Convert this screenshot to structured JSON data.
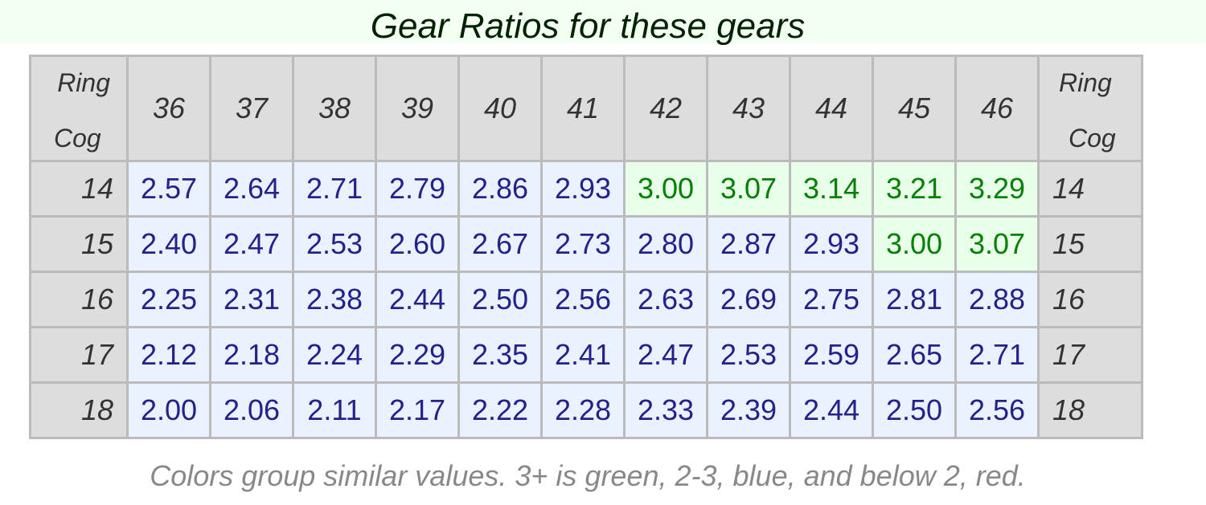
{
  "title": "Gear Ratios for these gears",
  "corner": {
    "ring": "Ring",
    "cog": "Cog"
  },
  "rings": [
    "36",
    "37",
    "38",
    "39",
    "40",
    "41",
    "42",
    "43",
    "44",
    "45",
    "46"
  ],
  "rows": [
    {
      "cog": "14",
      "values": [
        "2.57",
        "2.64",
        "2.71",
        "2.79",
        "2.86",
        "2.93",
        "3.00",
        "3.07",
        "3.14",
        "3.21",
        "3.29"
      ]
    },
    {
      "cog": "15",
      "values": [
        "2.40",
        "2.47",
        "2.53",
        "2.60",
        "2.67",
        "2.73",
        "2.80",
        "2.87",
        "2.93",
        "3.00",
        "3.07"
      ]
    },
    {
      "cog": "16",
      "values": [
        "2.25",
        "2.31",
        "2.38",
        "2.44",
        "2.50",
        "2.56",
        "2.63",
        "2.69",
        "2.75",
        "2.81",
        "2.88"
      ]
    },
    {
      "cog": "17",
      "values": [
        "2.12",
        "2.18",
        "2.24",
        "2.29",
        "2.35",
        "2.41",
        "2.47",
        "2.53",
        "2.59",
        "2.65",
        "2.71"
      ]
    },
    {
      "cog": "18",
      "values": [
        "2.00",
        "2.06",
        "2.11",
        "2.17",
        "2.22",
        "2.28",
        "2.33",
        "2.39",
        "2.44",
        "2.50",
        "2.56"
      ]
    }
  ],
  "colors": {
    "green_bg": "#eaffea",
    "green_text": "#008000",
    "blue_bg": "#eaf2ff",
    "blue_text": "#22228a",
    "header_bg": "#dddddd",
    "title_band": "#f2fff2"
  },
  "caption": "Colors group similar values. 3+ is green, 2-3, blue, and below 2, red."
}
